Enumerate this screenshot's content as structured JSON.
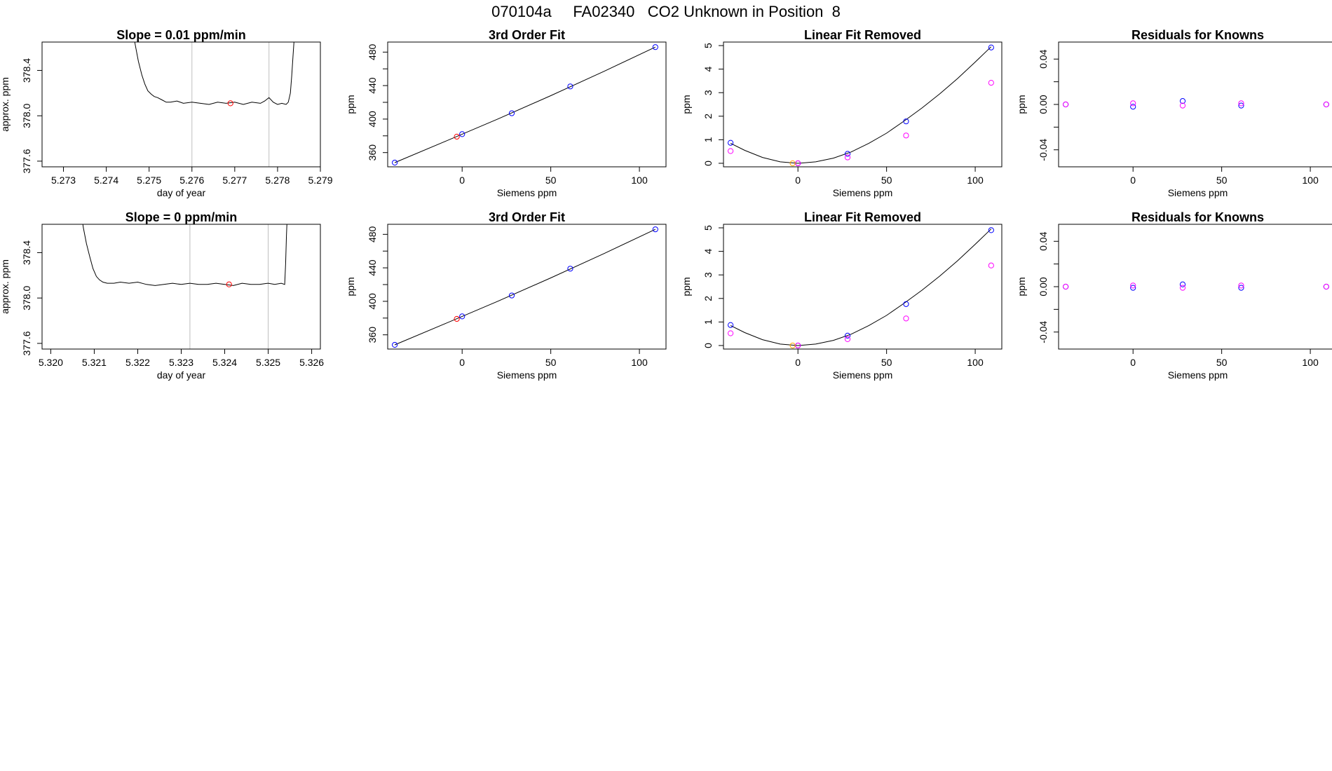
{
  "page_title": "070104a     FA02340   CO2 Unknown in Position  8",
  "colors": {
    "frame": "#000000",
    "trace": "#000000",
    "vline": "#bebebe",
    "blue_point": "#0000ff",
    "red_point": "#ff0000",
    "magenta_point": "#ff00ff",
    "orange_point": "#ffa500",
    "purple_point": "#a020f0"
  },
  "chart_data": [
    {
      "type": "line",
      "title": "Slope =  0.01  ppm/min",
      "xlabel": "day of year",
      "ylabel": "approx. ppm",
      "xlim": [
        5.2725,
        5.279
      ],
      "ylim": [
        377.55,
        378.65
      ],
      "xticks": [
        5.273,
        5.274,
        5.275,
        5.276,
        5.277,
        5.278,
        5.279
      ],
      "xtick_labels": [
        "5.273",
        "5.274",
        "5.275",
        "5.276",
        "5.277",
        "5.278",
        "5.279"
      ],
      "yticks": [
        377.6,
        378.0,
        378.4
      ],
      "ytick_labels": [
        "377.6",
        "378.0",
        "378.4"
      ],
      "vlines": [
        5.276,
        5.2778
      ],
      "trace_x": [
        5.27462,
        5.27468,
        5.27475,
        5.27483,
        5.2749,
        5.27497,
        5.27505,
        5.27512,
        5.2752,
        5.2753,
        5.2754,
        5.2755,
        5.27565,
        5.2758,
        5.276,
        5.2762,
        5.2764,
        5.2766,
        5.2768,
        5.277,
        5.2772,
        5.2774,
        5.2776,
        5.2777,
        5.2778,
        5.2779,
        5.278,
        5.2781,
        5.2782,
        5.27825,
        5.2783,
        5.27833,
        5.27836,
        5.2784
      ],
      "trace_y": [
        378.75,
        378.62,
        378.48,
        378.36,
        378.28,
        378.22,
        378.19,
        378.17,
        378.16,
        378.14,
        378.12,
        378.12,
        378.13,
        378.11,
        378.12,
        378.11,
        378.1,
        378.12,
        378.11,
        378.12,
        378.1,
        378.12,
        378.11,
        378.13,
        378.16,
        378.12,
        378.1,
        378.11,
        378.1,
        378.12,
        378.2,
        378.35,
        378.52,
        378.75
      ],
      "points": [
        {
          "x": 5.2769,
          "y": 378.11,
          "color": "red"
        }
      ]
    },
    {
      "type": "scatter",
      "title": "3rd Order Fit",
      "xlabel": "Siemens ppm",
      "ylabel": "ppm",
      "xlim": [
        -42,
        115
      ],
      "ylim": [
        343,
        492
      ],
      "xticks": [
        0,
        50,
        100
      ],
      "xtick_labels": [
        "0",
        "50",
        "100"
      ],
      "yticks": [
        360,
        400,
        440,
        480
      ],
      "ytick_labels": [
        "360",
        "400",
        "440",
        "480"
      ],
      "yticks_minor": [
        380,
        420,
        460
      ],
      "fit_x": [
        -38,
        -10,
        20,
        50,
        80,
        109
      ],
      "fit_y": [
        348,
        373,
        400,
        428,
        457,
        486
      ],
      "points": [
        {
          "x": -38,
          "y": 348,
          "color": "blue"
        },
        {
          "x": 0,
          "y": 382,
          "color": "blue"
        },
        {
          "x": 28,
          "y": 407,
          "color": "blue"
        },
        {
          "x": 61,
          "y": 439,
          "color": "blue"
        },
        {
          "x": 109,
          "y": 486,
          "color": "blue"
        },
        {
          "x": -3,
          "y": 379,
          "color": "red"
        }
      ]
    },
    {
      "type": "scatter",
      "title": "Linear Fit Removed",
      "xlabel": "Siemens ppm",
      "ylabel": "ppm",
      "xlim": [
        -42,
        115
      ],
      "ylim": [
        -0.15,
        5.15
      ],
      "xticks": [
        0,
        50,
        100
      ],
      "xtick_labels": [
        "0",
        "50",
        "100"
      ],
      "yticks": [
        0,
        1,
        2,
        3,
        4,
        5
      ],
      "ytick_labels": [
        "0",
        "1",
        "2",
        "3",
        "4",
        "5"
      ],
      "fit_x": [
        -38,
        -30,
        -20,
        -10,
        0,
        10,
        20,
        30,
        40,
        50,
        60,
        70,
        80,
        90,
        100,
        109
      ],
      "fit_y": [
        0.85,
        0.55,
        0.25,
        0.06,
        0.0,
        0.06,
        0.22,
        0.48,
        0.85,
        1.28,
        1.8,
        2.35,
        2.95,
        3.6,
        4.3,
        4.95
      ],
      "points": [
        {
          "x": -38,
          "y": 0.87,
          "color": "blue"
        },
        {
          "x": 0,
          "y": 0.0,
          "color": "blue"
        },
        {
          "x": 28,
          "y": 0.4,
          "color": "blue"
        },
        {
          "x": 61,
          "y": 1.78,
          "color": "blue"
        },
        {
          "x": 109,
          "y": 4.92,
          "color": "blue"
        },
        {
          "x": -38,
          "y": 0.52,
          "color": "magenta"
        },
        {
          "x": 0,
          "y": 0.0,
          "color": "magenta"
        },
        {
          "x": 28,
          "y": 0.25,
          "color": "magenta"
        },
        {
          "x": 61,
          "y": 1.18,
          "color": "magenta"
        },
        {
          "x": 109,
          "y": 3.42,
          "color": "magenta"
        },
        {
          "x": -3,
          "y": 0.0,
          "color": "orange"
        }
      ]
    },
    {
      "type": "scatter",
      "title": "Residuals for Knowns",
      "xlabel": "Siemens ppm",
      "ylabel": "ppm",
      "xlim": [
        -42,
        115
      ],
      "ylim": [
        -0.055,
        0.055
      ],
      "xticks": [
        0,
        50,
        100
      ],
      "xtick_labels": [
        "0",
        "50",
        "100"
      ],
      "yticks": [
        -0.04,
        0.0,
        0.04
      ],
      "ytick_labels": [
        "-0.04",
        "0.00",
        "0.04"
      ],
      "yticks_minor": [
        -0.02,
        0.02
      ],
      "points": [
        {
          "x": -38,
          "y": 0.0,
          "color": "blue"
        },
        {
          "x": 0,
          "y": -0.002,
          "color": "blue"
        },
        {
          "x": 28,
          "y": 0.003,
          "color": "blue"
        },
        {
          "x": 61,
          "y": -0.001,
          "color": "blue"
        },
        {
          "x": 109,
          "y": 0.0,
          "color": "blue"
        },
        {
          "x": -38,
          "y": 0.0,
          "color": "magenta"
        },
        {
          "x": 0,
          "y": 0.001,
          "color": "magenta"
        },
        {
          "x": 28,
          "y": -0.001,
          "color": "magenta"
        },
        {
          "x": 61,
          "y": 0.001,
          "color": "magenta"
        },
        {
          "x": 109,
          "y": 0.0,
          "color": "magenta"
        }
      ]
    },
    {
      "type": "line",
      "title": "Slope =  0  ppm/min",
      "xlabel": "day of year",
      "ylabel": "approx. ppm",
      "xlim": [
        5.3198,
        5.3262
      ],
      "ylim": [
        377.55,
        378.65
      ],
      "xticks": [
        5.32,
        5.321,
        5.322,
        5.323,
        5.324,
        5.325,
        5.326
      ],
      "xtick_labels": [
        "5.320",
        "5.321",
        "5.322",
        "5.323",
        "5.324",
        "5.325",
        "5.326"
      ],
      "yticks": [
        377.6,
        378.0,
        378.4
      ],
      "ytick_labels": [
        "377.6",
        "378.0",
        "378.4"
      ],
      "vlines": [
        5.3232,
        5.325
      ],
      "trace_x": [
        5.3207,
        5.32075,
        5.32082,
        5.3209,
        5.32097,
        5.32105,
        5.32112,
        5.3212,
        5.3213,
        5.32145,
        5.3216,
        5.3218,
        5.322,
        5.3222,
        5.3224,
        5.3226,
        5.3228,
        5.323,
        5.3232,
        5.3234,
        5.3236,
        5.3238,
        5.324,
        5.3242,
        5.3244,
        5.3246,
        5.3248,
        5.325,
        5.32515,
        5.3253,
        5.32538,
        5.3254,
        5.32542,
        5.32544
      ],
      "trace_y": [
        378.75,
        378.62,
        378.48,
        378.36,
        378.26,
        378.19,
        378.16,
        378.14,
        378.13,
        378.13,
        378.14,
        378.13,
        378.14,
        378.12,
        378.11,
        378.12,
        378.13,
        378.12,
        378.13,
        378.12,
        378.12,
        378.13,
        378.12,
        378.11,
        378.13,
        378.12,
        378.12,
        378.13,
        378.12,
        378.13,
        378.12,
        378.3,
        378.55,
        378.75
      ],
      "points": [
        {
          "x": 5.3241,
          "y": 378.12,
          "color": "red"
        }
      ]
    },
    {
      "type": "scatter",
      "title": "3rd Order Fit",
      "xlabel": "Siemens ppm",
      "ylabel": "ppm",
      "xlim": [
        -42,
        115
      ],
      "ylim": [
        343,
        492
      ],
      "xticks": [
        0,
        50,
        100
      ],
      "xtick_labels": [
        "0",
        "50",
        "100"
      ],
      "yticks": [
        360,
        400,
        440,
        480
      ],
      "ytick_labels": [
        "360",
        "400",
        "440",
        "480"
      ],
      "yticks_minor": [
        380,
        420,
        460
      ],
      "fit_x": [
        -38,
        -10,
        20,
        50,
        80,
        109
      ],
      "fit_y": [
        348,
        373,
        400,
        428,
        457,
        486
      ],
      "points": [
        {
          "x": -38,
          "y": 348,
          "color": "blue"
        },
        {
          "x": 0,
          "y": 382,
          "color": "blue"
        },
        {
          "x": 28,
          "y": 407,
          "color": "blue"
        },
        {
          "x": 61,
          "y": 439,
          "color": "blue"
        },
        {
          "x": 109,
          "y": 486,
          "color": "blue"
        },
        {
          "x": -3,
          "y": 379,
          "color": "red"
        }
      ]
    },
    {
      "type": "scatter",
      "title": "Linear Fit Removed",
      "xlabel": "Siemens ppm",
      "ylabel": "ppm",
      "xlim": [
        -42,
        115
      ],
      "ylim": [
        -0.15,
        5.15
      ],
      "xticks": [
        0,
        50,
        100
      ],
      "xtick_labels": [
        "0",
        "50",
        "100"
      ],
      "yticks": [
        0,
        1,
        2,
        3,
        4,
        5
      ],
      "ytick_labels": [
        "0",
        "1",
        "2",
        "3",
        "4",
        "5"
      ],
      "fit_x": [
        -38,
        -30,
        -20,
        -10,
        0,
        10,
        20,
        30,
        40,
        50,
        60,
        70,
        80,
        90,
        100,
        109
      ],
      "fit_y": [
        0.85,
        0.55,
        0.25,
        0.06,
        0.0,
        0.06,
        0.22,
        0.48,
        0.85,
        1.28,
        1.8,
        2.35,
        2.95,
        3.6,
        4.3,
        4.95
      ],
      "points": [
        {
          "x": -38,
          "y": 0.87,
          "color": "blue"
        },
        {
          "x": 0,
          "y": 0.0,
          "color": "blue"
        },
        {
          "x": 28,
          "y": 0.42,
          "color": "blue"
        },
        {
          "x": 61,
          "y": 1.76,
          "color": "blue"
        },
        {
          "x": 109,
          "y": 4.9,
          "color": "blue"
        },
        {
          "x": -38,
          "y": 0.52,
          "color": "magenta"
        },
        {
          "x": 0,
          "y": 0.0,
          "color": "magenta"
        },
        {
          "x": 28,
          "y": 0.27,
          "color": "magenta"
        },
        {
          "x": 61,
          "y": 1.15,
          "color": "magenta"
        },
        {
          "x": 109,
          "y": 3.4,
          "color": "magenta"
        },
        {
          "x": -3,
          "y": 0.0,
          "color": "orange"
        }
      ]
    },
    {
      "type": "scatter",
      "title": "Residuals for Knowns",
      "xlabel": "Siemens ppm",
      "ylabel": "ppm",
      "xlim": [
        -42,
        115
      ],
      "ylim": [
        -0.055,
        0.055
      ],
      "xticks": [
        0,
        50,
        100
      ],
      "xtick_labels": [
        "0",
        "50",
        "100"
      ],
      "yticks": [
        -0.04,
        0.0,
        0.04
      ],
      "ytick_labels": [
        "-0.04",
        "0.00",
        "0.04"
      ],
      "yticks_minor": [
        -0.02,
        0.02
      ],
      "points": [
        {
          "x": -38,
          "y": 0.0,
          "color": "blue"
        },
        {
          "x": 0,
          "y": -0.001,
          "color": "blue"
        },
        {
          "x": 28,
          "y": 0.002,
          "color": "blue"
        },
        {
          "x": 61,
          "y": -0.001,
          "color": "blue"
        },
        {
          "x": 109,
          "y": 0.0,
          "color": "blue"
        },
        {
          "x": -38,
          "y": 0.0,
          "color": "magenta"
        },
        {
          "x": 0,
          "y": 0.001,
          "color": "magenta"
        },
        {
          "x": 28,
          "y": -0.001,
          "color": "magenta"
        },
        {
          "x": 61,
          "y": 0.001,
          "color": "magenta"
        },
        {
          "x": 109,
          "y": 0.0,
          "color": "magenta"
        }
      ]
    }
  ]
}
